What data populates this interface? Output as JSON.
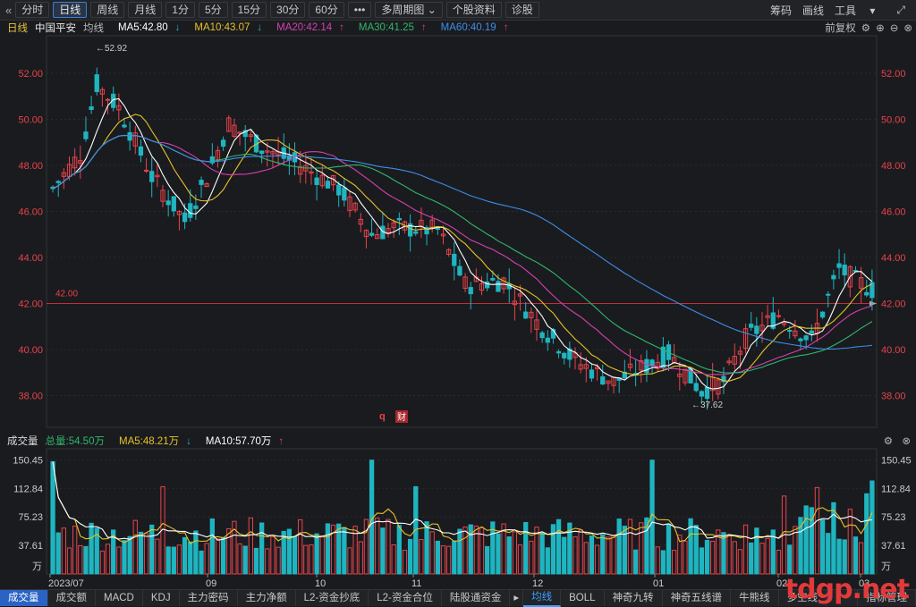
{
  "toolbar": {
    "back_icon": "double-chevron-left-icon",
    "periods": [
      "分时",
      "日线",
      "周线",
      "月线",
      "1分",
      "5分",
      "15分",
      "30分",
      "60分"
    ],
    "active_period": "日线",
    "more_label": "•••",
    "multi_period": "多周期图",
    "profile": "个股资料",
    "diagnose": "诊股",
    "right": [
      "筹码",
      "画线",
      "工具"
    ]
  },
  "info": {
    "period": "日线",
    "stock_name": "中国平安",
    "avg_label": "均线",
    "ma5": "MA5:42.80",
    "ma10": "MA10:43.07",
    "ma20": "MA20:42.14",
    "ma30": "MA30:41.25",
    "ma60": "MA60:40.19",
    "restore": "前复权"
  },
  "price_axis": {
    "ticks": [
      "52.00",
      "50.00",
      "48.00",
      "46.00",
      "44.00",
      "42.00",
      "40.00",
      "38.00"
    ],
    "tick_values": [
      52,
      50,
      48,
      46,
      44,
      42,
      40,
      38
    ],
    "high_label": "←52.92",
    "low_label": "←37.62",
    "ref_line_label": "42.00",
    "ref_value": 42.0
  },
  "markers": {
    "q": "q",
    "cai": "财"
  },
  "volume": {
    "label": "成交量",
    "total": "总量:54.50万",
    "ma5": "MA5:48.21万",
    "ma10": "MA10:57.70万",
    "ticks": [
      "150.45",
      "112.84",
      "75.23",
      "37.61",
      "万"
    ],
    "tick_values": [
      150.45,
      112.84,
      75.23,
      37.61
    ]
  },
  "x_axis": [
    "2023/07",
    "09",
    "10",
    "11",
    "12",
    "01",
    "02",
    "03"
  ],
  "bottom_tabs": [
    "成交量",
    "成交额",
    "MACD",
    "KDJ",
    "主力密码",
    "主力净额",
    "L2-资金抄底",
    "L2-资金合位",
    "陆股通资金",
    "均线",
    "BOLL",
    "神奇九转",
    "神奇五线谱",
    "牛熊线",
    "多空线",
    "指标管理"
  ],
  "watermark": "tdgp.net",
  "colors": {
    "up": "#e8434a",
    "down": "#1fb5c0",
    "ma5": "#ffffff",
    "ma10": "#e6c229",
    "ma20": "#d640b0",
    "ma30": "#2fb86b",
    "ma60": "#3c8fe8",
    "bg": "#1a1b1f"
  }
}
